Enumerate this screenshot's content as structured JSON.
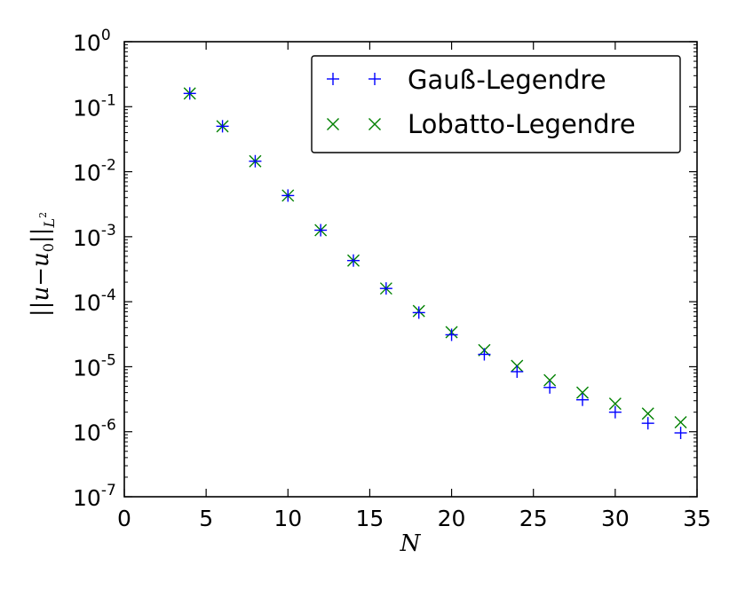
{
  "chart_data": {
    "type": "scatter",
    "xlabel": "N",
    "ylabel": "||u−u0||L²",
    "ylabel_parts": {
      "bars_open": "||",
      "u": "u",
      "minus": "−",
      "u0": "u",
      "sub0": "0",
      "bars_close": "||",
      "subL": "L",
      "sup2": "2"
    },
    "xlim": [
      0,
      35
    ],
    "ylim": [
      1e-07,
      1
    ],
    "yscale": "log",
    "grid": false,
    "legend_position": "top-right",
    "x_ticks": [
      {
        "value": 0,
        "label": "0"
      },
      {
        "value": 5,
        "label": "5"
      },
      {
        "value": 10,
        "label": "10"
      },
      {
        "value": 15,
        "label": "15"
      },
      {
        "value": 20,
        "label": "20"
      },
      {
        "value": 25,
        "label": "25"
      },
      {
        "value": 30,
        "label": "30"
      },
      {
        "value": 35,
        "label": "35"
      }
    ],
    "y_ticks": [
      {
        "exp": 0,
        "base": "10",
        "sup": "0"
      },
      {
        "exp": -1,
        "base": "10",
        "sup": "-1"
      },
      {
        "exp": -2,
        "base": "10",
        "sup": "-2"
      },
      {
        "exp": -3,
        "base": "10",
        "sup": "-3"
      },
      {
        "exp": -4,
        "base": "10",
        "sup": "-4"
      },
      {
        "exp": -5,
        "base": "10",
        "sup": "-5"
      },
      {
        "exp": -6,
        "base": "10",
        "sup": "-6"
      },
      {
        "exp": -7,
        "base": "10",
        "sup": "-7"
      }
    ],
    "x": [
      4,
      6,
      8,
      10,
      12,
      14,
      16,
      18,
      20,
      22,
      24,
      26,
      28,
      30,
      32,
      34
    ],
    "series": [
      {
        "name": "Gauß-Legendre",
        "marker": "plus",
        "color": "#0000ff",
        "values": [
          0.16,
          0.05,
          0.0145,
          0.0043,
          0.00126,
          0.00043,
          0.00016,
          6.8e-05,
          3.1e-05,
          1.55e-05,
          8.4e-06,
          4.8e-06,
          3.1e-06,
          2e-06,
          1.35e-06,
          9.6e-07
        ]
      },
      {
        "name": "Lobatto-Legendre",
        "marker": "x",
        "color": "#008000",
        "values": [
          0.16,
          0.05,
          0.0145,
          0.0043,
          0.00126,
          0.00043,
          0.00016,
          7.2e-05,
          3.4e-05,
          1.8e-05,
          1.03e-05,
          6.2e-06,
          4e-06,
          2.7e-06,
          1.9e-06,
          1.4e-06
        ]
      }
    ]
  }
}
